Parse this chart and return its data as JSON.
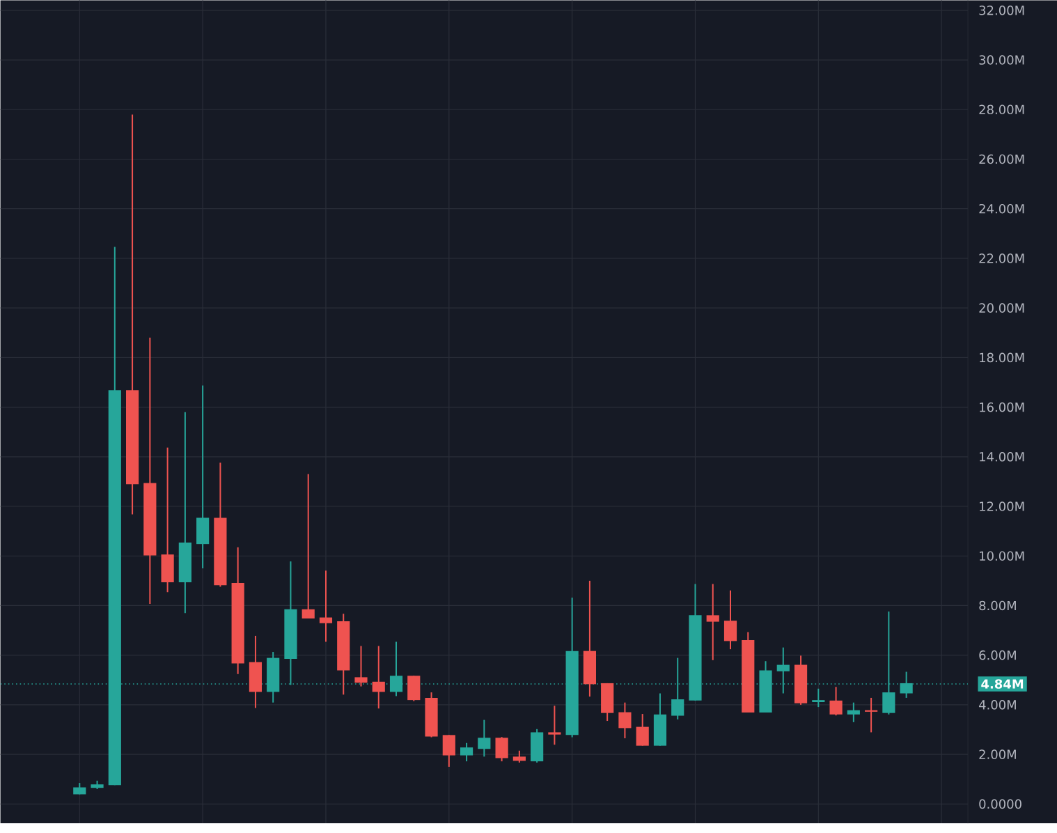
{
  "chart_data": {
    "type": "candlestick",
    "categories": [
      null,
      null,
      null,
      null,
      null,
      null,
      null,
      null,
      null,
      null,
      null,
      null,
      null,
      null,
      null,
      null,
      null,
      null,
      null,
      null,
      null,
      null,
      null,
      null,
      null,
      null,
      null,
      null,
      null,
      null,
      null,
      null,
      null,
      null,
      null,
      null,
      null,
      null,
      null,
      null,
      null,
      null,
      null,
      null,
      null,
      null,
      null,
      null,
      null,
      null,
      null,
      null,
      null,
      null,
      null
    ],
    "ohlc": [
      null,
      null,
      null,
      null,
      [
        0.39,
        0.85,
        0.39,
        0.67
      ],
      [
        0.65,
        0.94,
        0.6,
        0.79
      ],
      [
        0.76,
        22.46,
        0.76,
        16.68
      ],
      [
        16.68,
        27.8,
        11.68,
        12.89
      ],
      [
        12.94,
        18.8,
        8.07,
        10.02
      ],
      [
        10.06,
        14.37,
        8.54,
        8.94
      ],
      [
        8.94,
        15.8,
        7.7,
        10.54
      ],
      [
        10.48,
        16.87,
        9.5,
        11.54
      ],
      [
        11.54,
        13.76,
        8.76,
        8.82
      ],
      [
        8.91,
        10.35,
        5.24,
        5.67
      ],
      [
        5.72,
        6.78,
        3.87,
        4.52
      ],
      [
        4.52,
        6.13,
        4.09,
        5.89
      ],
      [
        5.85,
        9.78,
        4.8,
        7.85
      ],
      [
        7.85,
        13.3,
        7.48,
        7.48
      ],
      [
        7.52,
        9.41,
        6.54,
        7.29
      ],
      [
        7.37,
        7.67,
        4.41,
        5.39
      ],
      [
        5.11,
        6.37,
        4.74,
        4.89
      ],
      [
        4.93,
        6.37,
        3.85,
        4.52
      ],
      [
        4.52,
        6.54,
        4.35,
        5.17
      ],
      [
        5.17,
        5.17,
        4.15,
        4.19
      ],
      [
        4.28,
        4.5,
        2.69,
        2.72
      ],
      [
        2.78,
        2.78,
        1.5,
        1.96
      ],
      [
        1.96,
        2.46,
        1.72,
        2.28
      ],
      [
        2.22,
        3.39,
        1.91,
        2.67
      ],
      [
        2.67,
        2.7,
        1.72,
        1.85
      ],
      [
        1.91,
        2.15,
        1.67,
        1.74
      ],
      [
        1.72,
        3.02,
        1.67,
        2.89
      ],
      [
        2.89,
        3.96,
        2.39,
        2.8
      ],
      [
        2.78,
        8.32,
        2.69,
        6.17
      ],
      [
        6.17,
        9.0,
        4.33,
        4.83
      ],
      [
        4.87,
        4.87,
        3.35,
        3.67
      ],
      [
        3.7,
        4.09,
        2.65,
        3.06
      ],
      [
        3.11,
        3.63,
        2.35,
        2.35
      ],
      [
        2.35,
        4.46,
        2.35,
        3.61
      ],
      [
        3.56,
        5.89,
        3.41,
        4.22
      ],
      [
        4.17,
        8.87,
        4.17,
        7.61
      ],
      [
        7.61,
        8.87,
        5.8,
        7.35
      ],
      [
        7.39,
        8.61,
        6.24,
        6.57
      ],
      [
        6.61,
        6.93,
        3.69,
        3.69
      ],
      [
        3.69,
        5.76,
        3.69,
        5.39
      ],
      [
        5.35,
        6.31,
        4.46,
        5.61
      ],
      [
        5.61,
        5.98,
        4.0,
        4.06
      ],
      [
        4.11,
        4.65,
        3.91,
        4.19
      ],
      [
        4.17,
        4.72,
        3.57,
        3.61
      ],
      [
        3.61,
        4.09,
        3.3,
        3.78
      ],
      [
        3.78,
        4.28,
        2.89,
        3.72
      ],
      [
        3.67,
        7.76,
        3.61,
        4.5
      ],
      [
        4.46,
        5.33,
        4.28,
        4.87
      ],
      null,
      null,
      null
    ],
    "colors": [
      null,
      null,
      null,
      null,
      "#26a69a",
      "#26a69a",
      "#26a69a",
      "#ef5350",
      "#ef5350",
      "#ef5350",
      "#26a69a",
      "#26a69a",
      "#ef5350",
      "#ef5350",
      "#ef5350",
      "#26a69a",
      "#26a69a",
      "#ef5350",
      "#ef5350",
      "#ef5350",
      "#ef5350",
      "#ef5350",
      "#26a69a",
      "#ef5350",
      "#ef5350",
      "#ef5350",
      "#26a69a",
      "#26a69a",
      "#ef5350",
      "#ef5350",
      "#26a69a",
      "#ef5350",
      "#26a69a",
      "#ef5350",
      "#ef5350",
      "#ef5350",
      "#ef5350",
      "#26a69a",
      "#26a69a",
      "#26a69a",
      "#ef5350",
      "#ef5350",
      "#ef5350",
      "#26a69a",
      "#26a69a",
      "#ef5350",
      "#26a69a",
      "#ef5350",
      "#26a69a",
      "#ef5350",
      "#26a69a",
      "#26a69a",
      null,
      null,
      null
    ],
    "ylim": [
      -0.78,
      32.4
    ],
    "yticks": [
      {
        "value": 0,
        "label": "0.0000"
      },
      {
        "value": 2,
        "label": "2.00M"
      },
      {
        "value": 4,
        "label": "4.00M"
      },
      {
        "value": 6,
        "label": "6.00M"
      },
      {
        "value": 8,
        "label": "8.00M"
      },
      {
        "value": 10,
        "label": "10.00M"
      },
      {
        "value": 12,
        "label": "12.00M"
      },
      {
        "value": 14,
        "label": "14.00M"
      },
      {
        "value": 16,
        "label": "16.00M"
      },
      {
        "value": 18,
        "label": "18.00M"
      },
      {
        "value": 20,
        "label": "20.00M"
      },
      {
        "value": 22,
        "label": "22.00M"
      },
      {
        "value": 24,
        "label": "24.00M"
      },
      {
        "value": 26,
        "label": "26.00M"
      },
      {
        "value": 28,
        "label": "28.00M"
      },
      {
        "value": 30,
        "label": "30.00M"
      },
      {
        "value": 32,
        "label": "32.00M"
      }
    ],
    "ref_lines": [
      {
        "axis": "y",
        "value": 4.84,
        "label": "4.84M",
        "color": "#26a69a",
        "line_style": "dotted"
      }
    ],
    "grid": true,
    "tick_labels": "y"
  }
}
